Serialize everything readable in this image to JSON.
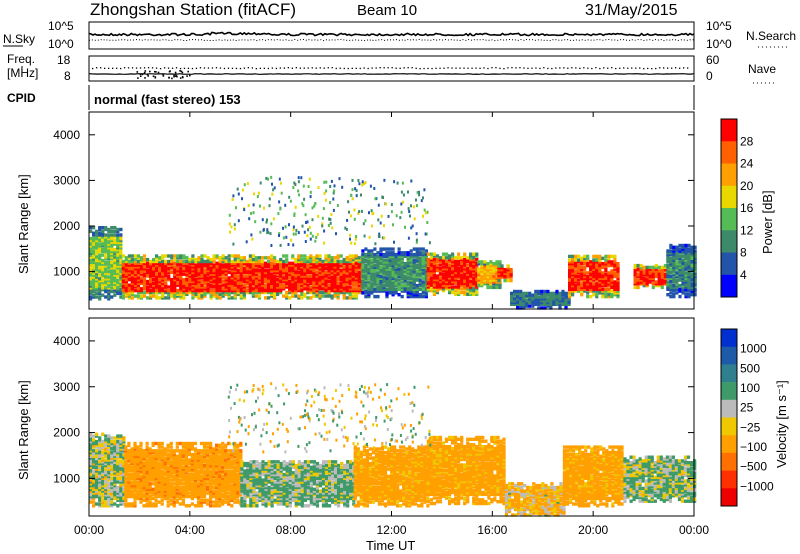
{
  "header": {
    "station": "Zhongshan Station (fitACF)",
    "beam": "Beam 10",
    "date": "31/May/2015"
  },
  "noise_panel": {
    "left_label": "N.Sky",
    "left_ticks": [
      "10^5",
      "10^0"
    ],
    "right_label": "N.Search",
    "right_ticks": [
      "10^5",
      "10^0"
    ]
  },
  "freq_panel": {
    "left_label_line1": "Freq.",
    "left_label_line2": "[MHz]",
    "left_ticks": [
      "18",
      "8"
    ],
    "right_label": "Nave",
    "right_ticks": [
      "60",
      "0"
    ]
  },
  "cpid_panel": {
    "label": "CPID",
    "text": "normal (fast stereo) 153"
  },
  "power_panel": {
    "ylabel": "Slant Range [km]",
    "yticks": [
      "4000",
      "3000",
      "2000",
      "1000"
    ],
    "colorbar_label": "Power [dB]",
    "colorbar_ticks": [
      "28",
      "24",
      "20",
      "16",
      "12",
      "8",
      "4"
    ],
    "colors": [
      "#0000ff",
      "#2255aa",
      "#3d8a6a",
      "#55bb55",
      "#e8d800",
      "#ffa000",
      "#ff6000",
      "#ff0000"
    ]
  },
  "velocity_panel": {
    "ylabel": "Slant Range [km]",
    "yticks": [
      "4000",
      "3000",
      "2000",
      "1000"
    ],
    "colorbar_label": "Velocity [m s⁻¹]",
    "colorbar_ticks": [
      "1000",
      "500",
      "100",
      "25",
      "−25",
      "−100",
      "−500",
      "−1000"
    ],
    "colors": [
      "#0030d0",
      "#1d5aa8",
      "#2f7f8f",
      "#3f9a6a",
      "#bbbbbb",
      "#f0c800",
      "#ffa000",
      "#ff7000",
      "#ff3000",
      "#ee0000"
    ]
  },
  "xaxis": {
    "ticks": [
      "00:00",
      "04:00",
      "08:00",
      "12:00",
      "16:00",
      "20:00",
      "00:00"
    ],
    "label": "Time UT"
  },
  "chart_data": {
    "type": "heatmap",
    "title": "Zhongshan Station (fitACF)  Beam 10  31/May/2015",
    "xlabel": "Time UT",
    "ylabel": "Slant Range [km]",
    "xlim_hours": [
      0,
      24
    ],
    "ylim_km": [
      180,
      4500
    ],
    "power": {
      "label": "Power [dB]",
      "clim": [
        0,
        30
      ],
      "echo_regions": [
        {
          "t0": 0.0,
          "t1": 1.3,
          "r0": 400,
          "r1": 2000,
          "value": 14
        },
        {
          "t0": 1.3,
          "t1": 10.8,
          "r0": 420,
          "r1": 1350,
          "value": 27
        },
        {
          "t0": 10.8,
          "t1": 13.4,
          "r0": 450,
          "r1": 1500,
          "value": 10
        },
        {
          "t0": 13.4,
          "t1": 15.4,
          "r0": 500,
          "r1": 1400,
          "value": 27
        },
        {
          "t0": 15.4,
          "t1": 16.3,
          "r0": 650,
          "r1": 1250,
          "value": 20
        },
        {
          "t0": 16.2,
          "t1": 16.7,
          "r0": 800,
          "r1": 1150,
          "value": 26
        },
        {
          "t0": 16.7,
          "t1": 19.0,
          "r0": 200,
          "r1": 600,
          "value": 8
        },
        {
          "t0": 19.0,
          "t1": 21.0,
          "r0": 450,
          "r1": 1350,
          "value": 27
        },
        {
          "t0": 21.6,
          "t1": 22.9,
          "r0": 650,
          "r1": 1150,
          "value": 27
        },
        {
          "t0": 22.9,
          "t1": 24.0,
          "r0": 450,
          "r1": 1600,
          "value": 9
        }
      ]
    },
    "velocity": {
      "label": "Velocity [m s⁻¹]",
      "clim": [
        -1000,
        1000
      ],
      "echo_regions": [
        {
          "t0": 0.0,
          "t1": 1.4,
          "r0": 400,
          "r1": 2000,
          "value": 50
        },
        {
          "t0": 1.4,
          "t1": 6.0,
          "r0": 400,
          "r1": 1800,
          "value": -200
        },
        {
          "t0": 6.0,
          "t1": 10.5,
          "r0": 400,
          "r1": 1400,
          "value": 80
        },
        {
          "t0": 10.5,
          "t1": 13.4,
          "r0": 400,
          "r1": 1700,
          "value": -150
        },
        {
          "t0": 13.4,
          "t1": 16.5,
          "r0": 450,
          "r1": 1900,
          "value": -150
        },
        {
          "t0": 16.5,
          "t1": 18.8,
          "r0": 200,
          "r1": 900,
          "value": -60
        },
        {
          "t0": 18.8,
          "t1": 21.2,
          "r0": 400,
          "r1": 1700,
          "value": -150
        },
        {
          "t0": 21.2,
          "t1": 24.0,
          "r0": 500,
          "r1": 1500,
          "value": 60
        }
      ]
    }
  }
}
